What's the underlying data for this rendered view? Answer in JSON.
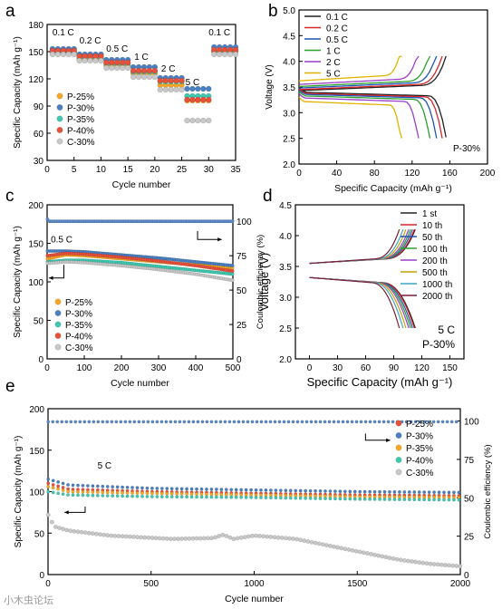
{
  "watermark": "小木虫论坛",
  "chart_data": [
    {
      "id": "a",
      "panel_label": "a",
      "type": "scatter",
      "xlabel": "Cycle number",
      "ylabel": "Specific Capacity (mAh g⁻¹)",
      "xlim": [
        0,
        35
      ],
      "ylim": [
        30,
        180
      ],
      "xticks": [
        0,
        5,
        10,
        15,
        20,
        25,
        30,
        35
      ],
      "yticks": [
        30,
        60,
        90,
        120,
        150,
        180
      ],
      "legend": "lower-left",
      "rate_labels": [
        {
          "text": "0.1 C",
          "x": 3,
          "y": 168
        },
        {
          "text": "0.2 C",
          "x": 8,
          "y": 159
        },
        {
          "text": "0.5 C",
          "x": 13,
          "y": 150
        },
        {
          "text": "1 C",
          "x": 17.5,
          "y": 141
        },
        {
          "text": "2 C",
          "x": 22.5,
          "y": 128
        },
        {
          "text": "5 C",
          "x": 27,
          "y": 113
        },
        {
          "text": "0.1 C",
          "x": 32,
          "y": 168
        }
      ],
      "segments": [
        {
          "start": 1,
          "end": 5
        },
        {
          "start": 6,
          "end": 10
        },
        {
          "start": 11,
          "end": 15
        },
        {
          "start": 16,
          "end": 20
        },
        {
          "start": 21,
          "end": 25
        },
        {
          "start": 26,
          "end": 30
        },
        {
          "start": 31,
          "end": 35
        }
      ],
      "series": [
        {
          "name": "P-25%",
          "color": "#f5a623",
          "levels": [
            149,
            142,
            135,
            126,
            113,
            96,
            150
          ]
        },
        {
          "name": "P-30%",
          "color": "#4a7fc1",
          "levels": [
            153,
            147,
            141,
            133,
            121,
            109,
            155
          ]
        },
        {
          "name": "P-35%",
          "color": "#3ec8b0",
          "levels": [
            150,
            144,
            137,
            128,
            117,
            101,
            151
          ]
        },
        {
          "name": "P-40%",
          "color": "#e8503a",
          "levels": [
            151,
            145,
            138,
            129,
            118,
            97,
            152
          ]
        },
        {
          "name": "C-30%",
          "color": "#c8c8c8",
          "levels": [
            147,
            140,
            132,
            122,
            108,
            74,
            147
          ]
        }
      ]
    },
    {
      "id": "b",
      "panel_label": "b",
      "type": "line",
      "xlabel": "Specific Capacity (mAh g⁻¹)",
      "ylabel": "Voltage (V)",
      "xlim": [
        0,
        200
      ],
      "ylim": [
        2.0,
        5.0
      ],
      "xticks": [
        0,
        40,
        80,
        120,
        160,
        200
      ],
      "yticks": [
        2.0,
        2.5,
        3.0,
        3.5,
        4.0,
        4.5,
        5.0
      ],
      "legend": "top-left",
      "annotation": "P-30%",
      "series": [
        {
          "name": "0.1 C",
          "color": "#222222",
          "capacity": 156,
          "charge_plateau": 3.43,
          "discharge_plateau": 3.4
        },
        {
          "name": "0.2 C",
          "color": "#d8262a",
          "capacity": 152,
          "charge_plateau": 3.45,
          "discharge_plateau": 3.38
        },
        {
          "name": "0.5 C",
          "color": "#1f55b5",
          "capacity": 146,
          "charge_plateau": 3.48,
          "discharge_plateau": 3.36
        },
        {
          "name": "1 C",
          "color": "#2ca02c",
          "capacity": 139,
          "charge_plateau": 3.51,
          "discharge_plateau": 3.33
        },
        {
          "name": "2 C",
          "color": "#9b3fc7",
          "capacity": 127,
          "charge_plateau": 3.55,
          "discharge_plateau": 3.29
        },
        {
          "name": "5 C",
          "color": "#e0b400",
          "capacity": 109,
          "charge_plateau": 3.62,
          "discharge_plateau": 3.22
        }
      ]
    },
    {
      "id": "c",
      "panel_label": "c",
      "type": "scatter",
      "xlabel": "Cycle number",
      "ylabel": "Specific Capacity (mAh g⁻¹)",
      "ylabel_right": "Coulombic efficiency (%)",
      "xlim": [
        0,
        500
      ],
      "ylim": [
        0,
        200
      ],
      "ylim_right": [
        0,
        112
      ],
      "xticks": [
        0,
        100,
        200,
        300,
        400,
        500
      ],
      "yticks": [
        0,
        50,
        100,
        150,
        200
      ],
      "yticks_right": [
        0,
        25,
        50,
        75,
        100
      ],
      "legend": "lower-left",
      "rate_label": "0.5 C",
      "series": [
        {
          "name": "P-25%",
          "color": "#f5a623",
          "points": [
            [
              1,
              130
            ],
            [
              50,
              135
            ],
            [
              100,
              134
            ],
            [
              200,
              130
            ],
            [
              300,
              126
            ],
            [
              400,
              122
            ],
            [
              500,
              118
            ]
          ]
        },
        {
          "name": "P-30%",
          "color": "#4a7fc1",
          "points": [
            [
              1,
              140
            ],
            [
              50,
              140
            ],
            [
              100,
              139
            ],
            [
              200,
              135
            ],
            [
              300,
              131
            ],
            [
              400,
              126
            ],
            [
              500,
              121
            ]
          ]
        },
        {
          "name": "P-35%",
          "color": "#3ec8b0",
          "points": [
            [
              1,
              126
            ],
            [
              50,
              128
            ],
            [
              100,
              128
            ],
            [
              200,
              125
            ],
            [
              300,
              120
            ],
            [
              400,
              115
            ],
            [
              500,
              110
            ]
          ]
        },
        {
          "name": "P-40%",
          "color": "#e8503a",
          "points": [
            [
              1,
              134
            ],
            [
              50,
              137
            ],
            [
              100,
              136
            ],
            [
              200,
              132
            ],
            [
              300,
              127
            ],
            [
              400,
              121
            ],
            [
              500,
              114
            ]
          ]
        },
        {
          "name": "C-30%",
          "color": "#c8c8c8",
          "points": [
            [
              1,
              124
            ],
            [
              50,
              126
            ],
            [
              100,
              125
            ],
            [
              200,
              121
            ],
            [
              300,
              116
            ],
            [
              400,
              110
            ],
            [
              500,
              102
            ]
          ]
        }
      ],
      "efficiency": {
        "value": 100,
        "color": "#5a8ac8"
      }
    },
    {
      "id": "d",
      "panel_label": "d",
      "type": "line",
      "xlabel": "Specific Capacity (mAh g⁻¹)",
      "ylabel": "Voltage (V)",
      "xlim": [
        -15,
        165
      ],
      "ylim": [
        2.0,
        4.5
      ],
      "xticks": [
        0,
        30,
        60,
        90,
        120,
        150
      ],
      "yticks": [
        2.0,
        2.5,
        3.0,
        3.5,
        4.0,
        4.5
      ],
      "legend": "top-right",
      "annotations": [
        "5 C",
        "P-30%"
      ],
      "series": [
        {
          "name": "1 st",
          "color": "#222222",
          "capacity": 113
        },
        {
          "name": "10 th",
          "color": "#d8262a",
          "capacity": 112
        },
        {
          "name": "50 th",
          "color": "#1f55b5",
          "capacity": 110
        },
        {
          "name": "100 th",
          "color": "#2ca02c",
          "capacity": 108
        },
        {
          "name": "200 th",
          "color": "#9b3fc7",
          "capacity": 106
        },
        {
          "name": "500 th",
          "color": "#c8a200",
          "capacity": 103
        },
        {
          "name": "1000 th",
          "color": "#3aa6c9",
          "capacity": 100
        },
        {
          "name": "2000 th",
          "color": "#7a1f3a",
          "capacity": 96
        }
      ]
    },
    {
      "id": "e",
      "panel_label": "e",
      "type": "scatter",
      "xlabel": "Cycle number",
      "ylabel": "Specific Capacity (mAh g⁻¹)",
      "ylabel_right": "Coulombic efficiency (%)",
      "xlim": [
        0,
        2000
      ],
      "ylim": [
        0,
        200
      ],
      "ylim_right": [
        0,
        108
      ],
      "xticks": [
        0,
        500,
        1000,
        1500,
        2000
      ],
      "yticks": [
        0,
        50,
        100,
        150,
        200
      ],
      "yticks_right": [
        0,
        25,
        50,
        75,
        100
      ],
      "legend": "top-right",
      "rate_label": "5 C",
      "series": [
        {
          "name": "P-25%",
          "color": "#e8503a",
          "points": [
            [
              1,
              110
            ],
            [
              100,
              103
            ],
            [
              500,
              100
            ],
            [
              1000,
              98
            ],
            [
              1500,
              96
            ],
            [
              2000,
              95
            ]
          ]
        },
        {
          "name": "P-30%",
          "color": "#4a7fc1",
          "points": [
            [
              1,
              115
            ],
            [
              100,
              108
            ],
            [
              500,
              104
            ],
            [
              1000,
              102
            ],
            [
              1500,
              100
            ],
            [
              2000,
              99
            ]
          ]
        },
        {
          "name": "P-35%",
          "color": "#f5a623",
          "points": [
            [
              1,
              106
            ],
            [
              100,
              100
            ],
            [
              500,
              98
            ],
            [
              1000,
              96
            ],
            [
              1500,
              94
            ],
            [
              2000,
              93
            ]
          ]
        },
        {
          "name": "P-40%",
          "color": "#3ec8b0",
          "points": [
            [
              1,
              100
            ],
            [
              100,
              96
            ],
            [
              500,
              94
            ],
            [
              1000,
              93
            ],
            [
              1500,
              91
            ],
            [
              2000,
              90
            ]
          ]
        },
        {
          "name": "C-30%",
          "color": "#c8c8c8",
          "points": [
            [
              1,
              72
            ],
            [
              30,
              58
            ],
            [
              100,
              53
            ],
            [
              300,
              47
            ],
            [
              600,
              43
            ],
            [
              800,
              44
            ],
            [
              850,
              48
            ],
            [
              900,
              43
            ],
            [
              1000,
              47
            ],
            [
              1200,
              43
            ],
            [
              1300,
              38
            ],
            [
              1500,
              28
            ],
            [
              1700,
              18
            ],
            [
              1850,
              13
            ],
            [
              2000,
              10
            ]
          ]
        }
      ],
      "efficiency": {
        "value": 99.5,
        "color": "#5a8ac8"
      }
    }
  ]
}
